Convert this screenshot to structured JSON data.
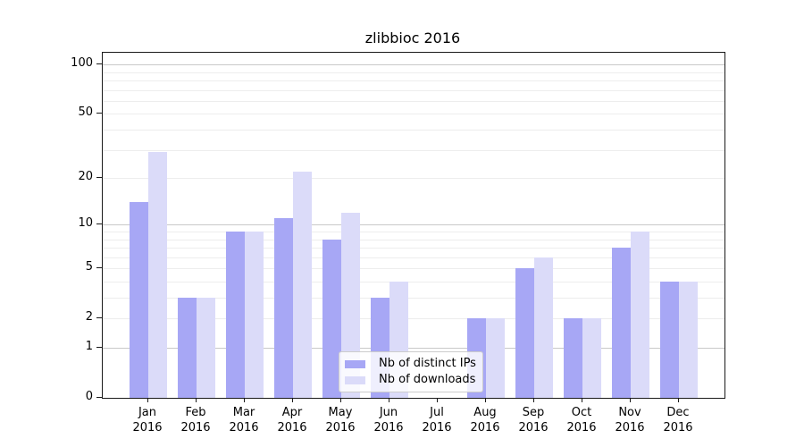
{
  "chart_data": {
    "type": "bar",
    "title": "zlibbioc 2016",
    "categories": [
      "Jan 2016",
      "Feb 2016",
      "Mar 2016",
      "Apr 2016",
      "May 2016",
      "Jun 2016",
      "Jul 2016",
      "Aug 2016",
      "Sep 2016",
      "Oct 2016",
      "Nov 2016",
      "Dec 2016"
    ],
    "series": [
      {
        "name": "Nb of distinct IPs",
        "color": "#a7a7f5",
        "values": [
          14,
          3,
          9,
          11,
          8,
          3,
          0,
          2,
          5,
          2,
          7,
          4
        ]
      },
      {
        "name": "Nb of downloads",
        "color": "#dbdbf9",
        "values": [
          29,
          3,
          9,
          22,
          12,
          4,
          0,
          2,
          6,
          2,
          9,
          4
        ]
      }
    ],
    "xlabel": "",
    "ylabel": "",
    "yscale": "log1p",
    "yticks": [
      0,
      1,
      2,
      5,
      10,
      20,
      50,
      100
    ],
    "ylim": [
      0,
      118
    ],
    "grid": true,
    "minor_gridlines": [
      2,
      3,
      4,
      5,
      6,
      7,
      8,
      9,
      20,
      30,
      40,
      50,
      60,
      70,
      80,
      90
    ],
    "major_gridlines": [
      1,
      10,
      100
    ],
    "legend_position": "lower center"
  },
  "colors": {
    "background": "#ffffff",
    "bar_distinct_ips": "#a7a7f5",
    "bar_downloads": "#dbdbf9",
    "grid_minor": "#ededed",
    "grid_major": "#c9c9c9",
    "axis_line": "#1a1a1a",
    "legend_border": "#cccccc",
    "text": "#000000"
  }
}
